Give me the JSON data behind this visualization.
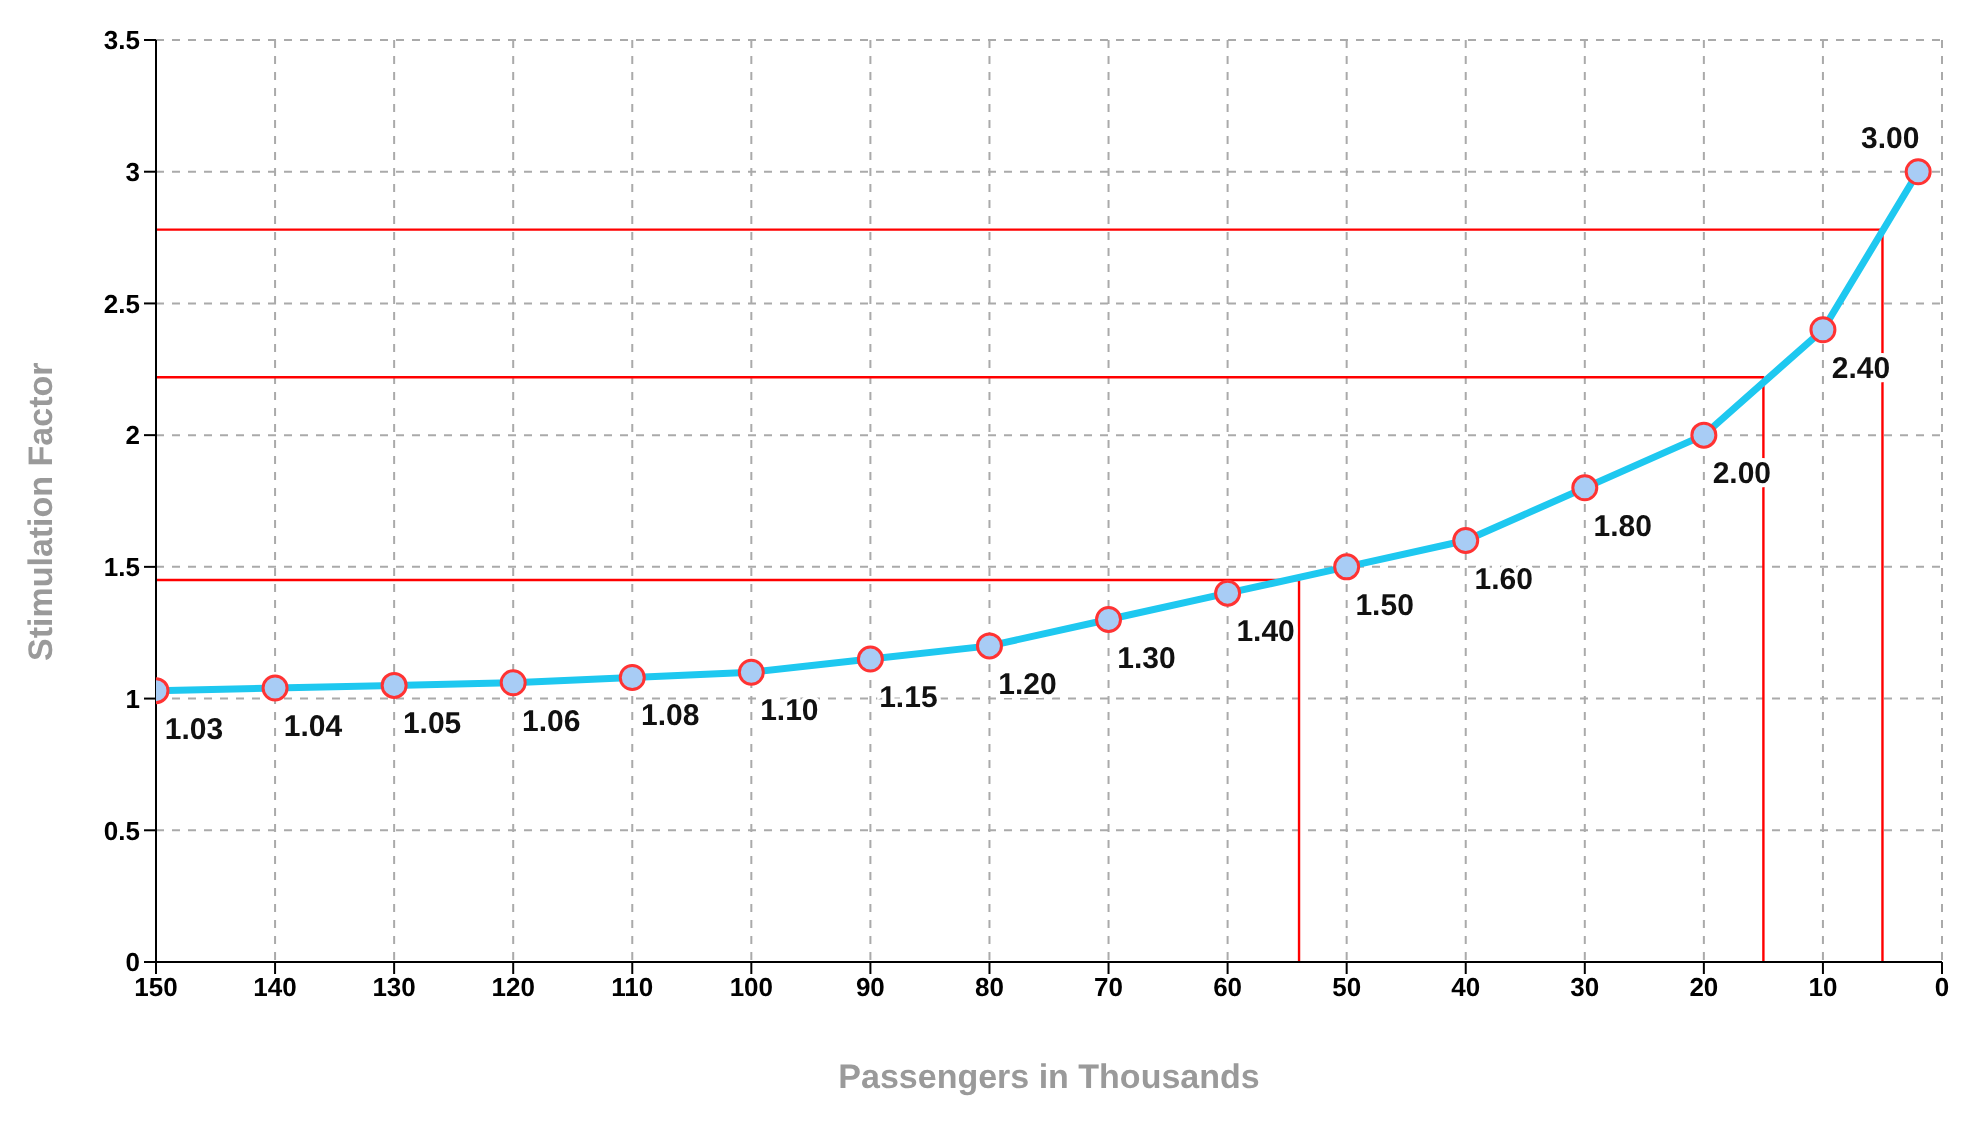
{
  "chart_data": {
    "type": "line",
    "xlabel": "Passengers in Thousands",
    "ylabel": "Stimulation Factor",
    "x": [
      150,
      140,
      130,
      120,
      110,
      100,
      90,
      80,
      70,
      60,
      50,
      40,
      30,
      20,
      10,
      2
    ],
    "series": [
      {
        "color": "#1ec8f0",
        "marker": "circle",
        "values": [
          1.03,
          1.04,
          1.05,
          1.06,
          1.08,
          1.1,
          1.15,
          1.2,
          1.3,
          1.4,
          1.5,
          1.6,
          1.8,
          2.0,
          2.4,
          3.0
        ],
        "value_labels": [
          "1.03",
          "1.04",
          "1.05",
          "1.06",
          "1.08",
          "1.10",
          "1.15",
          "1.20",
          "1.30",
          "1.40",
          "1.50",
          "1.60",
          "1.80",
          "2.00",
          "2.40",
          "3.00"
        ]
      },
      {
        "type": "line",
        "color": "#ff0000",
        "marker": "none",
        "x": [
          150,
          54,
          54
        ],
        "values": [
          1.45,
          1.45,
          0
        ]
      },
      {
        "type": "line",
        "color": "#ff0000",
        "marker": "none",
        "x": [
          150,
          15,
          15
        ],
        "values": [
          2.22,
          2.22,
          0
        ]
      },
      {
        "type": "line",
        "color": "#ff0000",
        "marker": "none",
        "x": [
          150,
          5,
          5
        ],
        "values": [
          2.78,
          2.78,
          0
        ]
      }
    ],
    "xlim": [
      150,
      0
    ],
    "xticks": [
      150,
      140,
      130,
      120,
      110,
      100,
      90,
      80,
      70,
      60,
      50,
      40,
      30,
      20,
      10,
      0
    ],
    "ylim": [
      0,
      3.5
    ],
    "yticks": [
      0,
      0.5,
      1,
      1.5,
      2,
      2.5,
      3,
      3.5
    ],
    "grid": true,
    "line_style": "solid"
  }
}
